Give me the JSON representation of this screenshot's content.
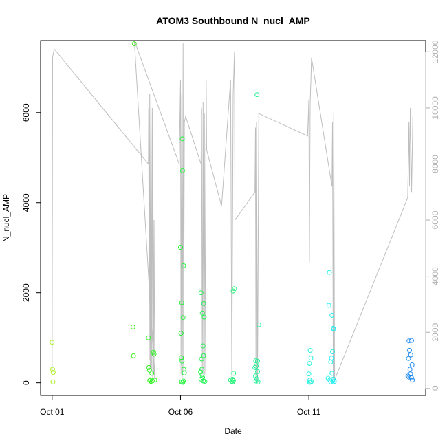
{
  "chart_data": {
    "type": "scatter",
    "title": "ATOM3 Southbound N_nucl_AMP",
    "xlabel": "Date",
    "ylabel": "N_nucl_AMP",
    "x_ticks": [
      {
        "label": "Oct 01",
        "day": 1.0
      },
      {
        "label": "Oct 06",
        "day": 6.0
      },
      {
        "label": "Oct 11",
        "day": 11.0
      }
    ],
    "xlim_days": [
      0.55,
      15.55
    ],
    "ylim": [
      -280,
      7600
    ],
    "y_ticks": [
      0,
      2000,
      4000,
      6000
    ],
    "y2lim": [
      -250,
      12400
    ],
    "y2_ticks": [
      0,
      2000,
      4000,
      6000,
      8000,
      10000,
      12000
    ],
    "y2_color": "#b0b0b0",
    "grid": false,
    "scatter_points": [
      {
        "day": 1.0,
        "value": 900
      },
      {
        "day": 1.02,
        "value": 300
      },
      {
        "day": 1.04,
        "value": 230
      },
      {
        "day": 1.03,
        "value": 20
      },
      {
        "day": 4.15,
        "value": 1240
      },
      {
        "day": 4.17,
        "value": 600
      },
      {
        "day": 4.2,
        "value": 7530
      },
      {
        "day": 4.75,
        "value": 1000
      },
      {
        "day": 4.77,
        "value": 340
      },
      {
        "day": 4.79,
        "value": 280
      },
      {
        "day": 4.8,
        "value": 50
      },
      {
        "day": 4.85,
        "value": 30
      },
      {
        "day": 4.9,
        "value": 40
      },
      {
        "day": 4.95,
        "value": 680
      },
      {
        "day": 4.97,
        "value": 640
      },
      {
        "day": 5.0,
        "value": 60
      },
      {
        "day": 4.88,
        "value": 210
      },
      {
        "day": 4.83,
        "value": 70
      },
      {
        "day": 6.0,
        "value": 3010
      },
      {
        "day": 6.02,
        "value": 1100
      },
      {
        "day": 6.05,
        "value": 1780
      },
      {
        "day": 6.07,
        "value": 5420
      },
      {
        "day": 6.08,
        "value": 4710
      },
      {
        "day": 6.1,
        "value": 1450
      },
      {
        "day": 6.12,
        "value": 2600
      },
      {
        "day": 6.03,
        "value": 560
      },
      {
        "day": 6.06,
        "value": 480
      },
      {
        "day": 6.13,
        "value": 300
      },
      {
        "day": 6.15,
        "value": 220
      },
      {
        "day": 6.04,
        "value": 20
      },
      {
        "day": 6.09,
        "value": 10
      },
      {
        "day": 6.11,
        "value": 40
      },
      {
        "day": 6.8,
        "value": 2000
      },
      {
        "day": 6.85,
        "value": 1550
      },
      {
        "day": 6.9,
        "value": 1760
      },
      {
        "day": 6.92,
        "value": 1460
      },
      {
        "day": 6.88,
        "value": 820
      },
      {
        "day": 6.82,
        "value": 530
      },
      {
        "day": 6.9,
        "value": 600
      },
      {
        "day": 6.78,
        "value": 240
      },
      {
        "day": 6.84,
        "value": 180
      },
      {
        "day": 6.86,
        "value": 120
      },
      {
        "day": 6.8,
        "value": 80
      },
      {
        "day": 6.89,
        "value": 40
      },
      {
        "day": 6.95,
        "value": 30
      },
      {
        "day": 6.83,
        "value": 300
      },
      {
        "day": 8.05,
        "value": 2040
      },
      {
        "day": 8.1,
        "value": 2090
      },
      {
        "day": 8.07,
        "value": 210
      },
      {
        "day": 7.95,
        "value": 60
      },
      {
        "day": 8.0,
        "value": 30
      },
      {
        "day": 8.02,
        "value": 80
      },
      {
        "day": 8.04,
        "value": 20
      },
      {
        "day": 8.06,
        "value": 50
      },
      {
        "day": 8.98,
        "value": 6400
      },
      {
        "day": 8.95,
        "value": 370
      },
      {
        "day": 8.9,
        "value": 340
      },
      {
        "day": 9.0,
        "value": 480
      },
      {
        "day": 9.05,
        "value": 1290
      },
      {
        "day": 8.93,
        "value": 490
      },
      {
        "day": 8.92,
        "value": 150
      },
      {
        "day": 8.96,
        "value": 90
      },
      {
        "day": 8.94,
        "value": 40
      },
      {
        "day": 9.02,
        "value": 20
      },
      {
        "day": 9.0,
        "value": 250
      },
      {
        "day": 11.05,
        "value": 720
      },
      {
        "day": 11.08,
        "value": 550
      },
      {
        "day": 11.02,
        "value": 430
      },
      {
        "day": 11.0,
        "value": 200
      },
      {
        "day": 11.04,
        "value": 60
      },
      {
        "day": 11.06,
        "value": 20
      },
      {
        "day": 11.1,
        "value": 30
      },
      {
        "day": 11.03,
        "value": 10
      },
      {
        "day": 11.8,
        "value": 2450
      },
      {
        "day": 11.78,
        "value": 1720
      },
      {
        "day": 11.9,
        "value": 1500
      },
      {
        "day": 11.95,
        "value": 1210
      },
      {
        "day": 11.97,
        "value": 1190
      },
      {
        "day": 11.92,
        "value": 690
      },
      {
        "day": 11.88,
        "value": 550
      },
      {
        "day": 11.85,
        "value": 460
      },
      {
        "day": 11.9,
        "value": 210
      },
      {
        "day": 11.75,
        "value": 100
      },
      {
        "day": 11.82,
        "value": 60
      },
      {
        "day": 11.86,
        "value": 20
      },
      {
        "day": 11.93,
        "value": 40
      },
      {
        "day": 11.95,
        "value": 80
      },
      {
        "day": 11.99,
        "value": 30
      },
      {
        "day": 14.9,
        "value": 930
      },
      {
        "day": 15.0,
        "value": 940
      },
      {
        "day": 14.92,
        "value": 720
      },
      {
        "day": 14.97,
        "value": 620
      },
      {
        "day": 14.88,
        "value": 540
      },
      {
        "day": 15.02,
        "value": 400
      },
      {
        "day": 14.94,
        "value": 300
      },
      {
        "day": 14.96,
        "value": 200
      },
      {
        "day": 14.86,
        "value": 150
      },
      {
        "day": 14.9,
        "value": 130
      },
      {
        "day": 15.0,
        "value": 110
      },
      {
        "day": 15.03,
        "value": 60
      },
      {
        "day": 14.98,
        "value": 130
      }
    ],
    "line_y2": [
      [
        1.0,
        650
      ],
      [
        1.02,
        11800
      ],
      [
        1.08,
        12100
      ],
      [
        4.75,
        8000
      ],
      [
        4.76,
        10000
      ],
      [
        4.78,
        1000
      ],
      [
        4.8,
        10500
      ],
      [
        4.82,
        700
      ],
      [
        4.85,
        10700
      ],
      [
        4.87,
        600
      ],
      [
        4.9,
        10000
      ],
      [
        4.92,
        300
      ],
      [
        4.93,
        7000
      ],
      [
        4.95,
        500
      ],
      [
        4.97,
        6000
      ],
      [
        5.0,
        300
      ],
      [
        4.2,
        12400
      ],
      [
        5.95,
        8000
      ],
      [
        6.0,
        11000
      ],
      [
        6.02,
        500
      ],
      [
        6.05,
        10500
      ],
      [
        6.07,
        400
      ],
      [
        6.1,
        12300
      ],
      [
        6.12,
        600
      ],
      [
        6.15,
        9500
      ],
      [
        6.2,
        9700
      ],
      [
        6.8,
        8000
      ],
      [
        6.82,
        10000
      ],
      [
        6.85,
        500
      ],
      [
        6.88,
        10200
      ],
      [
        6.9,
        300
      ],
      [
        6.93,
        9800
      ],
      [
        6.95,
        500
      ],
      [
        7.0,
        11000
      ],
      [
        7.02,
        8500
      ],
      [
        7.6,
        6500
      ],
      [
        7.95,
        11000
      ],
      [
        8.0,
        300
      ],
      [
        8.05,
        10500
      ],
      [
        8.1,
        12000
      ],
      [
        8.12,
        6000
      ],
      [
        8.9,
        7000
      ],
      [
        8.92,
        9300
      ],
      [
        8.94,
        300
      ],
      [
        8.96,
        9500
      ],
      [
        9.0,
        200
      ],
      [
        9.05,
        9800
      ],
      [
        10.95,
        9000
      ],
      [
        11.0,
        10300
      ],
      [
        11.02,
        4500
      ],
      [
        11.05,
        10200
      ],
      [
        11.08,
        11000
      ],
      [
        11.1,
        11800
      ],
      [
        11.9,
        7200
      ],
      [
        11.92,
        9500
      ],
      [
        11.95,
        400
      ],
      [
        11.97,
        9800
      ],
      [
        12.0,
        300
      ],
      [
        14.85,
        6800
      ],
      [
        14.9,
        9500
      ],
      [
        14.92,
        7200
      ],
      [
        14.95,
        10000
      ],
      [
        15.0,
        7000
      ],
      [
        15.05,
        9700
      ]
    ],
    "line_color": "#bebebe"
  }
}
